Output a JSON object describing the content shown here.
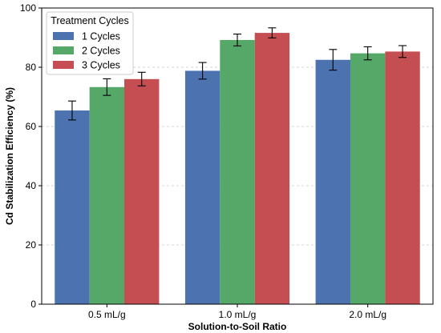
{
  "chart_data": {
    "type": "bar",
    "title": "",
    "xlabel": "Solution-to-Soil Ratio",
    "ylabel": "Cd Stabilization Efficiency (%)",
    "categories": [
      "0.5 mL/g",
      "1.0 mL/g",
      "2.0 mL/g"
    ],
    "ylim": [
      0,
      100
    ],
    "yticks": [
      0,
      20,
      40,
      60,
      80,
      100
    ],
    "grid": true,
    "legend": {
      "title": "Treatment Cycles",
      "placement": "top-left"
    },
    "series": [
      {
        "name": "1 Cycles",
        "color": "#4c72b0",
        "values": [
          65.4,
          78.8,
          82.5
        ],
        "errors": [
          3.2,
          2.8,
          3.5
        ]
      },
      {
        "name": "2 Cycles",
        "color": "#55a868",
        "values": [
          73.3,
          89.2,
          84.7
        ],
        "errors": [
          2.8,
          2.0,
          2.2
        ]
      },
      {
        "name": "3 Cycles",
        "color": "#c44e52",
        "values": [
          76.0,
          91.6,
          85.3
        ],
        "errors": [
          2.3,
          1.7,
          2.0
        ]
      }
    ]
  }
}
